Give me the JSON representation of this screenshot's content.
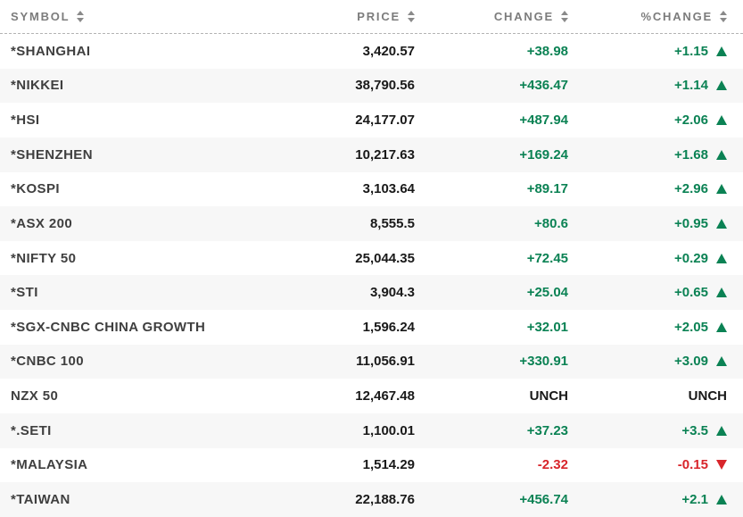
{
  "table": {
    "columns": [
      {
        "label": "SYMBOL"
      },
      {
        "label": "PRICE"
      },
      {
        "label": "CHANGE"
      },
      {
        "label": "%CHANGE"
      }
    ],
    "sort_icon": "sort-up-down-arrows",
    "rows": [
      {
        "symbol": "*SHANGHAI",
        "price": "3,420.57",
        "change": "+38.98",
        "pct_change": "+1.15",
        "direction": "up"
      },
      {
        "symbol": "*NIKKEI",
        "price": "38,790.56",
        "change": "+436.47",
        "pct_change": "+1.14",
        "direction": "up"
      },
      {
        "symbol": "*HSI",
        "price": "24,177.07",
        "change": "+487.94",
        "pct_change": "+2.06",
        "direction": "up"
      },
      {
        "symbol": "*SHENZHEN",
        "price": "10,217.63",
        "change": "+169.24",
        "pct_change": "+1.68",
        "direction": "up"
      },
      {
        "symbol": "*KOSPI",
        "price": "3,103.64",
        "change": "+89.17",
        "pct_change": "+2.96",
        "direction": "up"
      },
      {
        "symbol": "*ASX 200",
        "price": "8,555.5",
        "change": "+80.6",
        "pct_change": "+0.95",
        "direction": "up"
      },
      {
        "symbol": "*NIFTY 50",
        "price": "25,044.35",
        "change": "+72.45",
        "pct_change": "+0.29",
        "direction": "up"
      },
      {
        "symbol": "*STI",
        "price": "3,904.3",
        "change": "+25.04",
        "pct_change": "+0.65",
        "direction": "up"
      },
      {
        "symbol": "*SGX-CNBC CHINA GROWTH",
        "price": "1,596.24",
        "change": "+32.01",
        "pct_change": "+2.05",
        "direction": "up"
      },
      {
        "symbol": "*CNBC 100",
        "price": "11,056.91",
        "change": "+330.91",
        "pct_change": "+3.09",
        "direction": "up"
      },
      {
        "symbol": "NZX 50",
        "price": "12,467.48",
        "change": "UNCH",
        "pct_change": "UNCH",
        "direction": "unch"
      },
      {
        "symbol": "*.SETI",
        "price": "1,100.01",
        "change": "+37.23",
        "pct_change": "+3.5",
        "direction": "up"
      },
      {
        "symbol": "*MALAYSIA",
        "price": "1,514.29",
        "change": "-2.32",
        "pct_change": "-0.15",
        "direction": "down"
      },
      {
        "symbol": "*TAIWAN",
        "price": "22,188.76",
        "change": "+456.74",
        "pct_change": "+2.1",
        "direction": "up"
      }
    ]
  },
  "colors": {
    "up": "#0b8254",
    "down": "#d8252b",
    "neutral": "#191919",
    "stripe": "#f7f7f7",
    "header_text": "#7c7c7c"
  }
}
